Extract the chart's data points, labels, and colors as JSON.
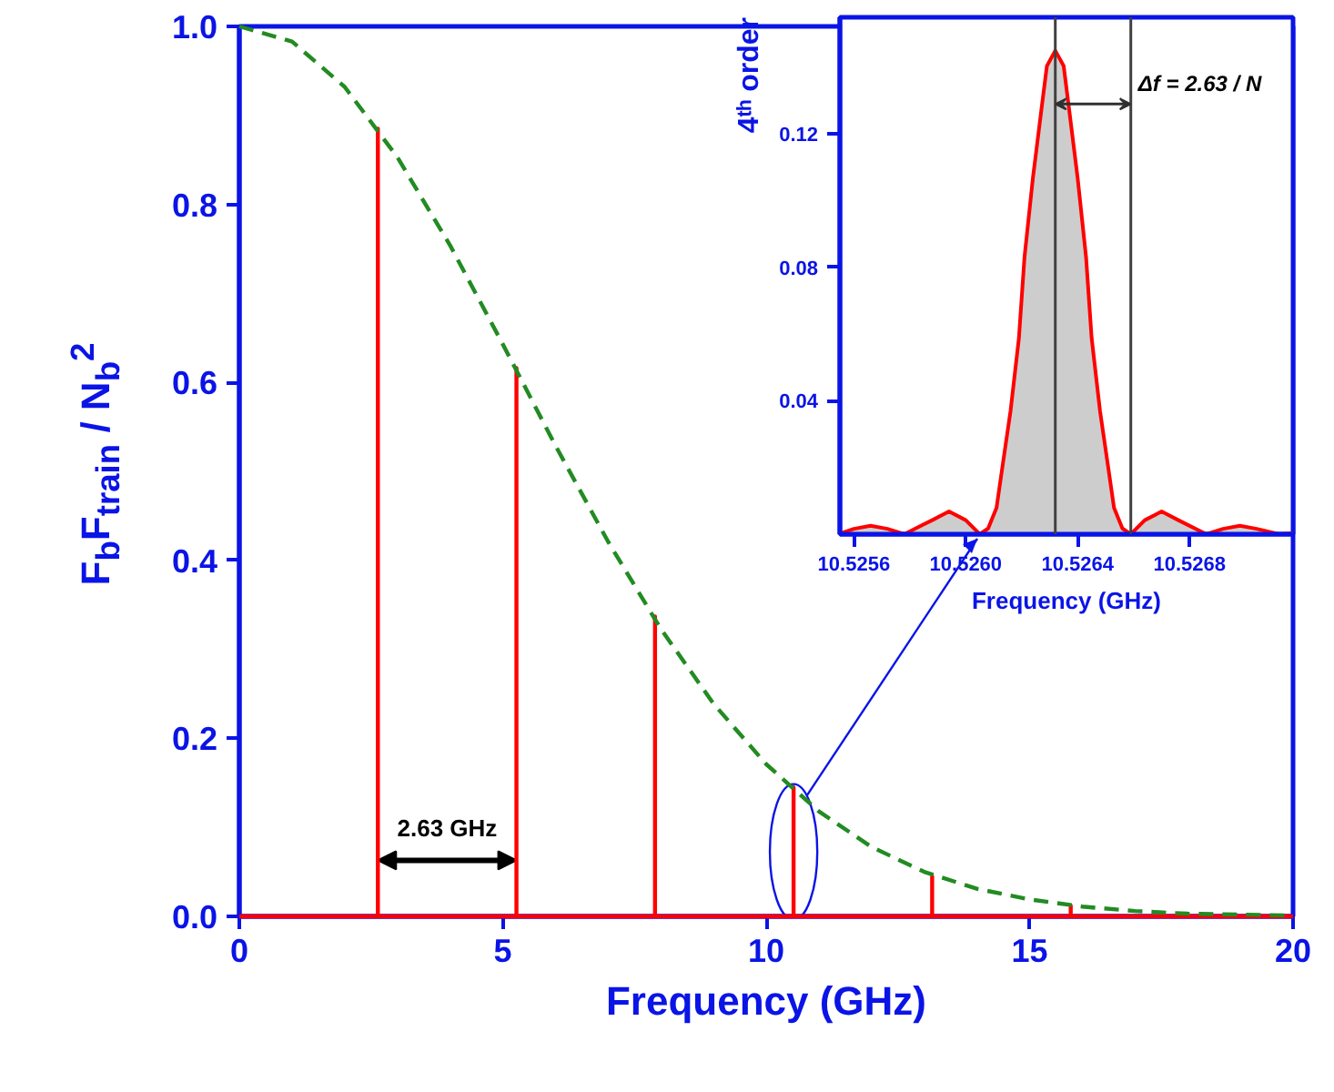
{
  "chart_data": [
    {
      "type": "line",
      "xlabel": "Frequency (GHz)",
      "ylabel": "F$_{b}$F$_{train}$ / N$_{b}$$^{2}$",
      "xlim": [
        0,
        20
      ],
      "ylim": [
        0,
        1.0
      ],
      "xticks": [
        0,
        5,
        10,
        15,
        20
      ],
      "yticks": [
        {
          "value": 0,
          "label": "0.0"
        },
        {
          "value": 0.2,
          "label": "0.2"
        },
        {
          "value": 0.4,
          "label": "0.4"
        },
        {
          "value": 0.6,
          "label": "0.6"
        },
        {
          "value": 0.8,
          "label": "0.8"
        },
        {
          "value": 1.0,
          "label": "1.0"
        }
      ],
      "series": [
        {
          "color": "#ff0000",
          "x": [
            0,
            2.63,
            2.63,
            2.63,
            5.26,
            5.26,
            5.26,
            7.89,
            7.89,
            7.89,
            10.52,
            10.52,
            10.52,
            13.15,
            13.15,
            13.15,
            15.78,
            15.78,
            15.78,
            20
          ],
          "values": [
            0,
            0,
            0.885,
            0,
            0,
            0.616,
            0,
            0,
            0.337,
            0,
            0,
            0.145,
            0,
            0,
            0.045,
            0,
            0,
            0.012,
            0,
            0
          ]
        },
        {
          "color": "#228b22",
          "line_style": "dashed",
          "x": [
            0,
            1,
            2,
            3,
            4,
            5,
            6,
            7,
            8,
            9,
            10,
            11,
            12,
            13,
            14,
            15,
            16,
            17,
            18,
            19,
            20
          ],
          "values": [
            1.0,
            0.983,
            0.932,
            0.853,
            0.754,
            0.643,
            0.529,
            0.421,
            0.323,
            0.239,
            0.171,
            0.118,
            0.078,
            0.05,
            0.031,
            0.019,
            0.011,
            0.006,
            0.003,
            0.002,
            0.001
          ]
        }
      ],
      "annotations": [
        "2.63 GHz"
      ]
    },
    {
      "type": "area",
      "xlabel": "Frequency (GHz)",
      "ylabel": "4ᵗʰ order",
      "xlim": [
        10.52555,
        10.52717
      ],
      "ylim": [
        0,
        0.155
      ],
      "xticks": [
        10.5256,
        {
          "value": 10.526,
          "label": "10.5260"
        },
        10.5264,
        10.5268
      ],
      "yticks": [
        0.04,
        0.08,
        0.12
      ],
      "series": [
        {
          "color": "#ff0000",
          "x": [
            10.52555,
            10.5256,
            10.52566,
            10.52572,
            10.52578,
            10.52588,
            10.52594,
            10.526,
            10.52605,
            10.52608,
            10.52611,
            10.52613,
            10.52616,
            10.52619,
            10.52621,
            10.52624,
            10.52627,
            10.52629,
            10.52632,
            10.52635,
            10.52637,
            10.5264,
            10.52643,
            10.52645,
            10.52648,
            10.52651,
            10.52653,
            10.52656,
            10.52659,
            10.52664,
            10.5267,
            10.52676,
            10.52686,
            10.52692,
            10.52698,
            10.52704,
            10.52712,
            10.52717
          ],
          "values": [
            0.0002,
            0.0016,
            0.0025,
            0.0016,
            0,
            0.0042,
            0.0068,
            0.0042,
            0,
            0.0017,
            0.0079,
            0.0196,
            0.0369,
            0.0588,
            0.0831,
            0.1068,
            0.127,
            0.1404,
            0.145,
            0.1404,
            0.127,
            0.1068,
            0.0831,
            0.0588,
            0.0369,
            0.0196,
            0.0079,
            0.0017,
            0,
            0.0042,
            0.0068,
            0.0042,
            0,
            0.0016,
            0.0025,
            0.0016,
            0,
            0.0003
          ]
        }
      ],
      "ref_lines": [
        {
          "axis": "x",
          "value": 10.52632,
          "color": "#404040"
        },
        {
          "axis": "x",
          "value": 10.52659,
          "color": "#404040"
        }
      ],
      "annotations": [
        {
          "text": "Δf = 2.63 / N",
          "x": 10.52659,
          "y": 0.129
        }
      ]
    }
  ]
}
